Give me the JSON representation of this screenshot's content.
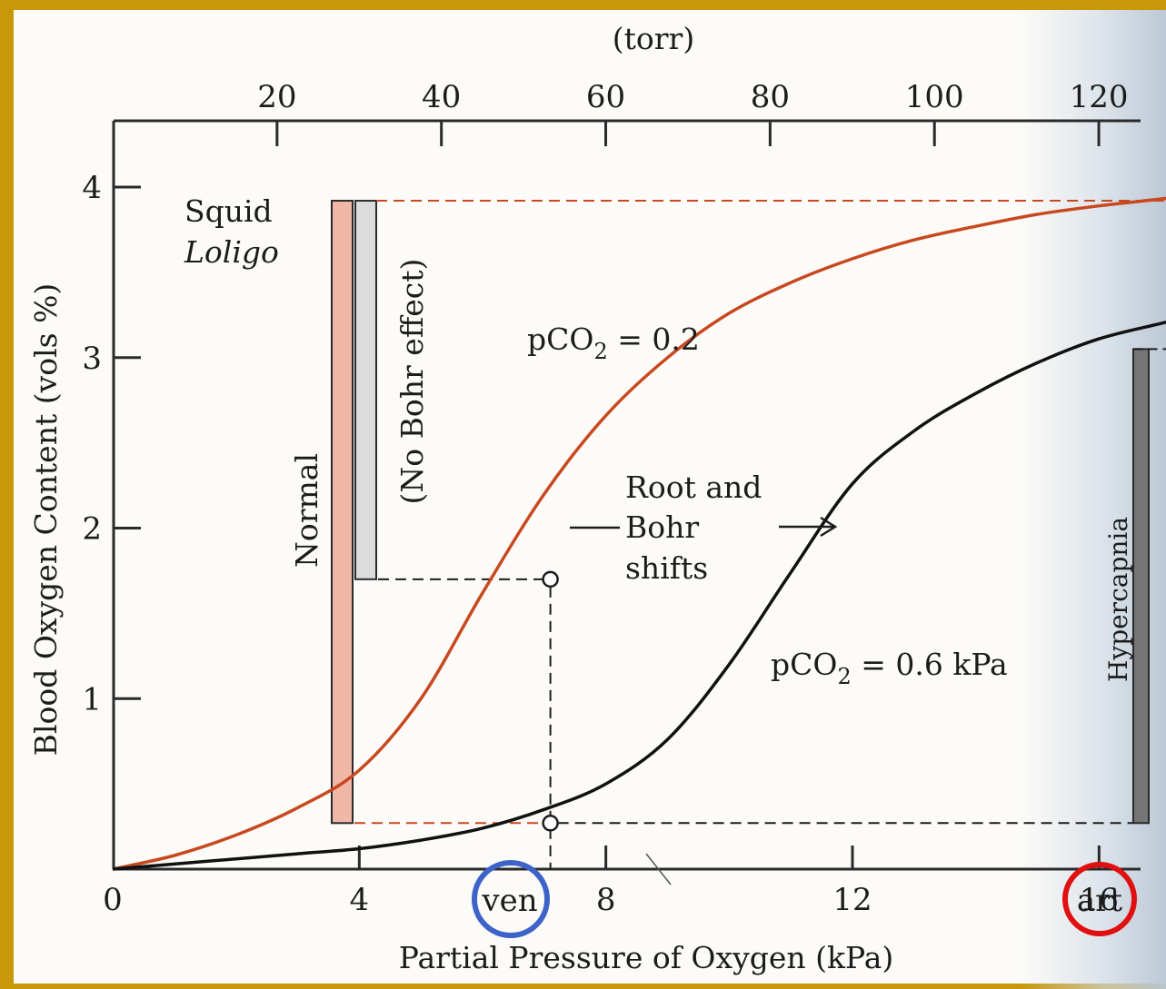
{
  "chart_data": {
    "type": "line",
    "title": "",
    "xlabel": "Partial Pressure of Oxygen (kPa)",
    "ylabel": "Blood Oxygen Content (vols %)",
    "x2label": "(torr)",
    "xlim": [
      0,
      17.6
    ],
    "ylim": [
      0,
      4.4
    ],
    "x_ticks": [
      0,
      4,
      8,
      12,
      16
    ],
    "x_tick_labels": [
      "0",
      "4",
      "8",
      "12",
      "16"
    ],
    "x2_ticks": [
      20,
      40,
      60,
      80,
      100,
      120
    ],
    "x2_tick_labels": [
      "20",
      "40",
      "60",
      "80",
      "100",
      "120"
    ],
    "y_ticks": [
      1,
      2,
      3,
      4
    ],
    "y_tick_labels": [
      "1",
      "2",
      "3",
      "4"
    ],
    "grid": false,
    "species": "Squid",
    "species_italic": "Loligo",
    "series": [
      {
        "name": "pCO2 = 0.2",
        "label_text": "pCO",
        "label_sub": "2",
        "label_tail": " = 0.2",
        "color": "#c8491f",
        "x": [
          0,
          1,
          2,
          3,
          4,
          5,
          6,
          7,
          8,
          9,
          10,
          11,
          12,
          13,
          14,
          15,
          16,
          17,
          17.6
        ],
        "y": [
          0.0,
          0.08,
          0.2,
          0.36,
          0.58,
          1.0,
          1.62,
          2.2,
          2.66,
          3.0,
          3.26,
          3.44,
          3.58,
          3.69,
          3.77,
          3.84,
          3.89,
          3.93,
          3.96
        ]
      },
      {
        "name": "pCO2 = 0.6 kPa",
        "label_text": "pCO",
        "label_sub": "2",
        "label_tail": " = 0.6 kPa",
        "color": "#111111",
        "x": [
          0,
          1,
          2,
          3,
          4,
          5,
          6,
          7,
          8,
          9,
          10,
          11,
          12,
          13,
          14,
          15,
          16,
          17,
          17.6
        ],
        "y": [
          0.0,
          0.03,
          0.06,
          0.09,
          0.12,
          0.17,
          0.24,
          0.35,
          0.5,
          0.76,
          1.2,
          1.74,
          2.26,
          2.57,
          2.79,
          2.97,
          3.11,
          3.2,
          3.25
        ]
      }
    ],
    "markers": [
      {
        "series": "pCO2 = 0.2",
        "x": 7.1,
        "y": 1.7
      },
      {
        "series": "pCO2 = 0.6 kPa",
        "x": 7.1,
        "y": 0.27
      },
      {
        "series": "pCO2 = 0.2",
        "x": 17.3,
        "y": 3.92
      },
      {
        "series": "pCO2 = 0.6 kPa",
        "x": 17.3,
        "y": 3.05
      }
    ],
    "bars": [
      {
        "label": "Normal",
        "color": "#f1b7a6",
        "y_bottom": 0.27,
        "y_top": 3.92
      },
      {
        "label": "(No Bohr effect)",
        "color": "#dcdcdc",
        "y_bottom": 1.7,
        "y_top": 3.92
      },
      {
        "label": "Hypercapnia",
        "color": "#757575",
        "y_bottom": 0.27,
        "y_top": 3.05
      }
    ],
    "shift_annotation": [
      "Root and",
      "Bohr",
      "shifts"
    ],
    "ven_label": "ven",
    "art_label": "art",
    "ven_circle_color": "#3d63c9",
    "art_circle_color": "#e01010"
  }
}
